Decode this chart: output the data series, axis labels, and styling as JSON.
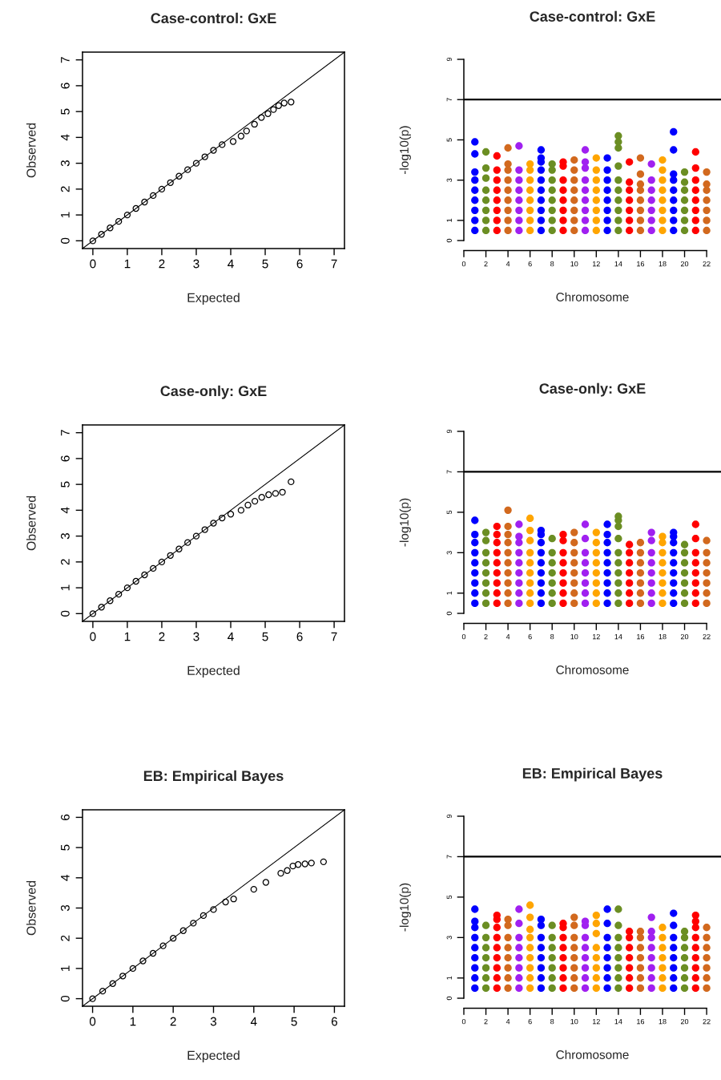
{
  "chart_data": [
    {
      "type": "scatter",
      "title": "Case-control: GxE",
      "xlabel": "Expected",
      "ylabel": "Observed",
      "xlim": [
        -0.3,
        7.3
      ],
      "ylim": [
        -0.3,
        7.3
      ],
      "xticks": [
        0,
        1,
        2,
        3,
        4,
        5,
        6,
        7
      ],
      "yticks": [
        0,
        1,
        2,
        3,
        4,
        5,
        6,
        7
      ],
      "marker": "circle",
      "series": [
        {
          "color": "#000000",
          "x": [
            0,
            0.25,
            0.5,
            0.75,
            1,
            1.25,
            1.5,
            1.75,
            2,
            2.25,
            2.5,
            2.75,
            3,
            3.25,
            3.5,
            3.75,
            4.07,
            4.3,
            4.46,
            4.69,
            4.89,
            5.08,
            5.24,
            5.39,
            5.55,
            5.75
          ],
          "values": [
            0,
            0.25,
            0.5,
            0.75,
            1,
            1.25,
            1.5,
            1.75,
            2,
            2.25,
            2.5,
            2.75,
            3,
            3.25,
            3.5,
            3.72,
            3.84,
            4.05,
            4.25,
            4.51,
            4.77,
            4.92,
            5.08,
            5.23,
            5.33,
            5.37
          ]
        },
        {
          "type": "line",
          "marker": "none",
          "color": "#000000",
          "x": [
            -0.3,
            7.3
          ],
          "values": [
            -0.3,
            7.3
          ]
        }
      ]
    },
    {
      "type": "scatter",
      "title": "Case-control: GxE",
      "xlabel": "Chromosome",
      "ylabel": "-log10(p)",
      "xlim": [
        0,
        23.3
      ],
      "ylim": [
        0,
        9
      ],
      "xticks": [
        0,
        2,
        4,
        6,
        8,
        10,
        12,
        14,
        16,
        18,
        20,
        22
      ],
      "yticks": [
        0,
        1,
        3,
        5,
        7,
        9
      ],
      "marker": "circle",
      "ref_lines": [
        {
          "axis": "y",
          "value": 7,
          "color": "#000000"
        }
      ],
      "series": [
        {
          "color": "#0000ff",
          "x": [
            1,
            1,
            1,
            1,
            1,
            1,
            1,
            1,
            1,
            7,
            7,
            7,
            7,
            7,
            7,
            7,
            7,
            7,
            7,
            13,
            13,
            13,
            13,
            13,
            13,
            13,
            13,
            19,
            19,
            19,
            19,
            19,
            19,
            19,
            19,
            19
          ],
          "values": [
            0.5,
            1,
            1.5,
            2,
            2.5,
            3,
            3.4,
            4.3,
            4.9,
            0.5,
            1,
            1.5,
            2,
            2.5,
            3,
            3.5,
            3.9,
            4.1,
            4.5,
            0.5,
            1,
            1.5,
            2,
            2.5,
            3,
            3.5,
            4.1,
            0.5,
            1,
            1.5,
            2,
            2.5,
            3,
            3.3,
            4.5,
            5.4
          ]
        },
        {
          "color": "#6b8e23",
          "x": [
            2,
            2,
            2,
            2,
            2,
            2,
            2,
            2,
            8,
            8,
            8,
            8,
            8,
            8,
            8,
            8,
            14,
            14,
            14,
            14,
            14,
            14,
            14,
            14,
            14,
            14,
            20,
            20,
            20,
            20,
            20,
            20,
            20
          ],
          "values": [
            0.5,
            1,
            1.5,
            2,
            2.5,
            3.1,
            3.6,
            4.4,
            0.5,
            1,
            1.5,
            2,
            2.5,
            3,
            3.5,
            3.8,
            0.5,
            1,
            1.5,
            2,
            2.5,
            3,
            3.7,
            4.6,
            4.9,
            5.2,
            0.5,
            1,
            1.5,
            2,
            2.5,
            2.9,
            3.4
          ]
        },
        {
          "color": "#ff0000",
          "x": [
            3,
            3,
            3,
            3,
            3,
            3,
            3,
            3,
            9,
            9,
            9,
            9,
            9,
            9,
            9,
            9,
            15,
            15,
            15,
            15,
            15,
            15,
            15,
            21,
            21,
            21,
            21,
            21,
            21,
            21,
            21
          ],
          "values": [
            0.5,
            1,
            1.5,
            2,
            2.5,
            3,
            3.5,
            4.2,
            0.5,
            1,
            1.5,
            2,
            2.5,
            3,
            3.7,
            3.9,
            0.5,
            1,
            1.5,
            2,
            2.5,
            2.9,
            3.9,
            0.5,
            1,
            1.5,
            2,
            2.5,
            3,
            3.6,
            4.4
          ]
        },
        {
          "color": "#d2691e",
          "x": [
            4,
            4,
            4,
            4,
            4,
            4,
            4,
            4,
            4,
            10,
            10,
            10,
            10,
            10,
            10,
            10,
            10,
            16,
            16,
            16,
            16,
            16,
            16,
            16,
            16,
            22,
            22,
            22,
            22,
            22,
            22,
            22
          ],
          "values": [
            0.5,
            1,
            1.5,
            2,
            2.5,
            3,
            3.5,
            3.8,
            4.6,
            0.5,
            1,
            1.5,
            2,
            2.5,
            3,
            3.5,
            4.0,
            0.5,
            1,
            1.5,
            2,
            2.5,
            2.8,
            3.3,
            4.1,
            0.5,
            1,
            1.5,
            2,
            2.5,
            2.8,
            3.4
          ]
        },
        {
          "color": "#a020f0",
          "x": [
            5,
            5,
            5,
            5,
            5,
            5,
            5,
            5,
            11,
            11,
            11,
            11,
            11,
            11,
            11,
            11,
            11,
            17,
            17,
            17,
            17,
            17,
            17,
            17
          ],
          "values": [
            0.5,
            1,
            1.5,
            2,
            2.5,
            3,
            3.5,
            4.7,
            0.5,
            1,
            1.5,
            2,
            2.5,
            3,
            3.6,
            3.9,
            4.5,
            0.5,
            1,
            1.5,
            2,
            2.5,
            3.0,
            3.8
          ]
        },
        {
          "color": "#ffa500",
          "x": [
            6,
            6,
            6,
            6,
            6,
            6,
            6,
            6,
            12,
            12,
            12,
            12,
            12,
            12,
            12,
            12,
            18,
            18,
            18,
            18,
            18,
            18,
            18,
            18
          ],
          "values": [
            0.5,
            1,
            1.5,
            2,
            2.5,
            3,
            3.5,
            3.8,
            0.5,
            1,
            1.5,
            2,
            2.5,
            3,
            3.5,
            4.1,
            0.5,
            1,
            1.5,
            2,
            2.5,
            3,
            3.5,
            4.0
          ]
        }
      ]
    },
    {
      "type": "scatter",
      "title": "Case-only: GxE",
      "xlabel": "Expected",
      "ylabel": "Observed",
      "xlim": [
        -0.3,
        7.3
      ],
      "ylim": [
        -0.3,
        7.3
      ],
      "xticks": [
        0,
        1,
        2,
        3,
        4,
        5,
        6,
        7
      ],
      "yticks": [
        0,
        1,
        2,
        3,
        4,
        5,
        6,
        7
      ],
      "marker": "circle",
      "series": [
        {
          "color": "#000000",
          "x": [
            0,
            0.25,
            0.5,
            0.75,
            1,
            1.25,
            1.5,
            1.75,
            2,
            2.25,
            2.5,
            2.75,
            3,
            3.25,
            3.5,
            3.75,
            4,
            4.3,
            4.5,
            4.7,
            4.9,
            5.1,
            5.3,
            5.5,
            5.75
          ],
          "values": [
            0,
            0.25,
            0.5,
            0.75,
            1,
            1.25,
            1.5,
            1.75,
            2,
            2.25,
            2.5,
            2.75,
            3,
            3.25,
            3.5,
            3.7,
            3.85,
            4.0,
            4.2,
            4.35,
            4.5,
            4.6,
            4.65,
            4.7,
            5.1
          ]
        },
        {
          "type": "line",
          "marker": "none",
          "color": "#000000",
          "x": [
            -0.3,
            7.3
          ],
          "values": [
            -0.3,
            7.3
          ]
        }
      ]
    },
    {
      "type": "scatter",
      "title": "Case-only: GxE",
      "xlabel": "Chromosome",
      "ylabel": "-log10(p)",
      "xlim": [
        0,
        23.3
      ],
      "ylim": [
        0,
        9
      ],
      "xticks": [
        0,
        2,
        4,
        6,
        8,
        10,
        12,
        14,
        16,
        18,
        20,
        22
      ],
      "yticks": [
        0,
        1,
        3,
        5,
        7,
        9
      ],
      "marker": "circle",
      "ref_lines": [
        {
          "axis": "y",
          "value": 7,
          "color": "#000000"
        }
      ],
      "series": [
        {
          "color": "#0000ff",
          "x": [
            1,
            1,
            1,
            1,
            1,
            1,
            1,
            1,
            1,
            7,
            7,
            7,
            7,
            7,
            7,
            7,
            7,
            7,
            13,
            13,
            13,
            13,
            13,
            13,
            13,
            13,
            13,
            19,
            19,
            19,
            19,
            19,
            19,
            19,
            19,
            19
          ],
          "values": [
            0.5,
            1,
            1.5,
            2,
            2.5,
            3,
            3.5,
            3.9,
            4.6,
            0.5,
            1,
            1.5,
            2,
            2.5,
            3,
            3.5,
            3.9,
            4.1,
            0.5,
            1,
            1.5,
            2,
            2.5,
            3,
            3.5,
            3.9,
            4.4,
            0.5,
            1,
            1.5,
            2,
            2.5,
            3,
            3.5,
            3.8,
            4.0
          ]
        },
        {
          "color": "#6b8e23",
          "x": [
            2,
            2,
            2,
            2,
            2,
            2,
            2,
            2,
            8,
            8,
            8,
            8,
            8,
            8,
            8,
            14,
            14,
            14,
            14,
            14,
            14,
            14,
            14,
            14,
            14,
            20,
            20,
            20,
            20,
            20,
            20,
            20
          ],
          "values": [
            0.5,
            1,
            1.5,
            2,
            2.5,
            3,
            3.6,
            4.0,
            0.5,
            1,
            1.5,
            2,
            2.5,
            3,
            3.7,
            0.5,
            1,
            1.5,
            2,
            2.5,
            3,
            3.7,
            4.3,
            4.6,
            4.8,
            0.5,
            1,
            1.5,
            2,
            2.5,
            3,
            3.4
          ]
        },
        {
          "color": "#ff0000",
          "x": [
            3,
            3,
            3,
            3,
            3,
            3,
            3,
            3,
            3,
            9,
            9,
            9,
            9,
            9,
            9,
            9,
            9,
            15,
            15,
            15,
            15,
            15,
            15,
            15,
            21,
            21,
            21,
            21,
            21,
            21,
            21,
            21
          ],
          "values": [
            0.5,
            1,
            1.5,
            2,
            2.5,
            3,
            3.5,
            3.9,
            4.3,
            0.5,
            1,
            1.5,
            2,
            2.5,
            3,
            3.6,
            3.9,
            0.5,
            1,
            1.5,
            2,
            2.5,
            3,
            3.4,
            0.5,
            1,
            1.5,
            2,
            2.5,
            3,
            3.7,
            4.4
          ]
        },
        {
          "color": "#d2691e",
          "x": [
            4,
            4,
            4,
            4,
            4,
            4,
            4,
            4,
            4,
            4,
            10,
            10,
            10,
            10,
            10,
            10,
            10,
            10,
            16,
            16,
            16,
            16,
            16,
            16,
            16,
            22,
            22,
            22,
            22,
            22,
            22,
            22
          ],
          "values": [
            0.5,
            1,
            1.5,
            2,
            2.5,
            3,
            3.5,
            3.9,
            4.3,
            5.1,
            0.5,
            1,
            1.5,
            2,
            2.5,
            3,
            3.5,
            4.0,
            0.5,
            1,
            1.5,
            2,
            2.5,
            3.0,
            3.5,
            0.5,
            1,
            1.5,
            2,
            2.5,
            3.0,
            3.6
          ]
        },
        {
          "color": "#a020f0",
          "x": [
            5,
            5,
            5,
            5,
            5,
            5,
            5,
            5,
            5,
            11,
            11,
            11,
            11,
            11,
            11,
            11,
            11,
            17,
            17,
            17,
            17,
            17,
            17,
            17,
            17
          ],
          "values": [
            0.5,
            1,
            1.5,
            2,
            2.5,
            3,
            3.5,
            3.8,
            4.4,
            0.5,
            1,
            1.5,
            2,
            2.5,
            3,
            3.7,
            4.4,
            0.5,
            1,
            1.5,
            2,
            2.5,
            3,
            3.6,
            4.0
          ]
        },
        {
          "color": "#ffa500",
          "x": [
            6,
            6,
            6,
            6,
            6,
            6,
            6,
            6,
            6,
            12,
            12,
            12,
            12,
            12,
            12,
            12,
            12,
            18,
            18,
            18,
            18,
            18,
            18,
            18,
            18
          ],
          "values": [
            0.5,
            1,
            1.5,
            2,
            2.5,
            3,
            3.6,
            4.1,
            4.7,
            0.5,
            1,
            1.5,
            2,
            2.5,
            3,
            3.5,
            4.0,
            0.5,
            1,
            1.5,
            2,
            2.5,
            3,
            3.5,
            3.8
          ]
        }
      ]
    },
    {
      "type": "scatter",
      "title": "EB: Empirical Bayes",
      "xlabel": "Expected",
      "ylabel": "Observed",
      "xlim": [
        -0.25,
        6.25
      ],
      "ylim": [
        -0.25,
        6.25
      ],
      "xticks": [
        0,
        1,
        2,
        3,
        4,
        5,
        6
      ],
      "yticks": [
        0,
        1,
        2,
        3,
        4,
        5,
        6
      ],
      "marker": "circle",
      "series": [
        {
          "color": "#000000",
          "x": [
            0,
            0.25,
            0.5,
            0.75,
            1,
            1.25,
            1.5,
            1.75,
            2,
            2.25,
            2.5,
            2.75,
            3,
            3.3,
            3.5,
            4,
            4.3,
            4.67,
            4.83,
            4.97,
            5.1,
            5.27,
            5.43,
            5.73
          ],
          "values": [
            0,
            0.25,
            0.5,
            0.75,
            1,
            1.25,
            1.5,
            1.75,
            2,
            2.25,
            2.5,
            2.75,
            2.95,
            3.2,
            3.3,
            3.62,
            3.85,
            4.15,
            4.24,
            4.39,
            4.44,
            4.46,
            4.49,
            4.53
          ]
        },
        {
          "type": "line",
          "marker": "none",
          "color": "#000000",
          "x": [
            -0.25,
            6.25
          ],
          "values": [
            -0.25,
            6.25
          ]
        }
      ]
    },
    {
      "type": "scatter",
      "title": "EB: Empirical Bayes",
      "xlabel": "Chromosome",
      "ylabel": "-log10(p)",
      "xlim": [
        0,
        23.3
      ],
      "ylim": [
        0,
        9
      ],
      "xticks": [
        0,
        2,
        4,
        6,
        8,
        10,
        12,
        14,
        16,
        18,
        20,
        22
      ],
      "yticks": [
        0,
        1,
        3,
        5,
        7,
        9
      ],
      "marker": "circle",
      "ref_lines": [
        {
          "axis": "y",
          "value": 7,
          "color": "#000000"
        }
      ],
      "series": [
        {
          "color": "#0000ff",
          "x": [
            1,
            1,
            1,
            1,
            1,
            1,
            1,
            1,
            1,
            7,
            7,
            7,
            7,
            7,
            7,
            7,
            7,
            13,
            13,
            13,
            13,
            13,
            13,
            13,
            13,
            19,
            19,
            19,
            19,
            19,
            19,
            19,
            19
          ],
          "values": [
            0.5,
            1,
            1.5,
            2,
            2.5,
            3,
            3.5,
            3.8,
            4.4,
            0.5,
            1,
            1.5,
            2,
            2.5,
            3,
            3.6,
            3.9,
            0.5,
            1,
            1.5,
            2,
            2.5,
            3,
            3.7,
            4.4,
            0.5,
            1,
            1.5,
            2,
            2.5,
            3,
            3.6,
            4.2
          ]
        },
        {
          "color": "#6b8e23",
          "x": [
            2,
            2,
            2,
            2,
            2,
            2,
            2,
            8,
            8,
            8,
            8,
            8,
            8,
            8,
            14,
            14,
            14,
            14,
            14,
            14,
            14,
            14,
            20,
            20,
            20,
            20,
            20,
            20,
            20
          ],
          "values": [
            0.5,
            1,
            1.5,
            2,
            2.5,
            3,
            3.6,
            0.5,
            1,
            1.5,
            2,
            2.5,
            3,
            3.6,
            0.5,
            1,
            1.5,
            2,
            2.5,
            3,
            3.6,
            4.4,
            0.5,
            1,
            1.5,
            2,
            2.5,
            3,
            3.3
          ]
        },
        {
          "color": "#ff0000",
          "x": [
            3,
            3,
            3,
            3,
            3,
            3,
            3,
            3,
            3,
            9,
            9,
            9,
            9,
            9,
            9,
            9,
            9,
            15,
            15,
            15,
            15,
            15,
            15,
            15,
            21,
            21,
            21,
            21,
            21,
            21,
            21,
            21,
            21
          ],
          "values": [
            0.5,
            1,
            1.5,
            2,
            2.5,
            3,
            3.5,
            3.9,
            4.1,
            0.5,
            1,
            1.5,
            2,
            2.5,
            3,
            3.5,
            3.7,
            0.5,
            1,
            1.5,
            2,
            2.5,
            3,
            3.3,
            0.5,
            1,
            1.5,
            2,
            2.5,
            3,
            3.5,
            3.8,
            4.1
          ]
        },
        {
          "color": "#d2691e",
          "x": [
            4,
            4,
            4,
            4,
            4,
            4,
            4,
            4,
            10,
            10,
            10,
            10,
            10,
            10,
            10,
            10,
            16,
            16,
            16,
            16,
            16,
            16,
            16,
            22,
            22,
            22,
            22,
            22,
            22,
            22
          ],
          "values": [
            0.5,
            1,
            1.5,
            2,
            2.5,
            3,
            3.6,
            3.9,
            0.5,
            1,
            1.5,
            2,
            2.5,
            3,
            3.6,
            4.0,
            0.5,
            1,
            1.5,
            2,
            2.5,
            3,
            3.3,
            0.5,
            1,
            1.5,
            2,
            2.5,
            3.0,
            3.5
          ]
        },
        {
          "color": "#a020f0",
          "x": [
            5,
            5,
            5,
            5,
            5,
            5,
            5,
            5,
            11,
            11,
            11,
            11,
            11,
            11,
            11,
            11,
            17,
            17,
            17,
            17,
            17,
            17,
            17,
            17
          ],
          "values": [
            0.5,
            1,
            1.5,
            2,
            2.5,
            3,
            3.7,
            4.4,
            0.5,
            1,
            1.5,
            2,
            2.5,
            3,
            3.6,
            3.8,
            0.5,
            1,
            1.5,
            2,
            2.5,
            3,
            3.3,
            4.0
          ]
        },
        {
          "color": "#ffa500",
          "x": [
            6,
            6,
            6,
            6,
            6,
            6,
            6,
            6,
            6,
            12,
            12,
            12,
            12,
            12,
            12,
            12,
            12,
            18,
            18,
            18,
            18,
            18,
            18,
            18
          ],
          "values": [
            0.5,
            1,
            1.5,
            2,
            2.5,
            3,
            3.4,
            4.0,
            4.6,
            0.5,
            1,
            1.5,
            2,
            2.5,
            3.2,
            3.7,
            4.1,
            0.5,
            1,
            1.5,
            2,
            2.5,
            3,
            3.5
          ]
        }
      ]
    }
  ]
}
